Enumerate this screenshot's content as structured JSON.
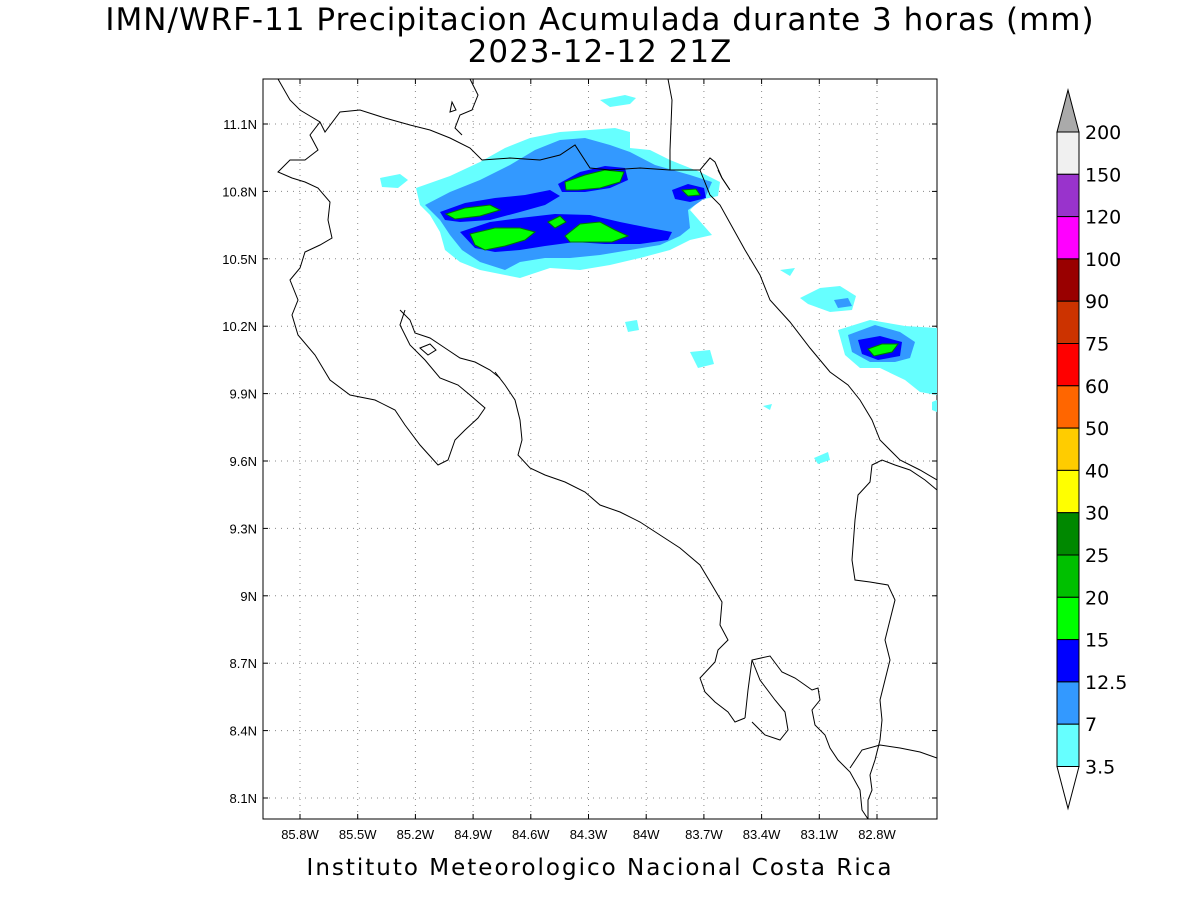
{
  "title": "IMN/WRF-11 Precipitacion Acumulada durante 3 horas (mm)",
  "subtitle": "2023-12-12 21Z",
  "footer": "Instituto Meteorologico Nacional Costa Rica",
  "map": {
    "lat_ticks": [
      "11.1N",
      "10.8N",
      "10.5N",
      "10.2N",
      "9.9N",
      "9.6N",
      "9.3N",
      "9N",
      "8.7N",
      "8.4N",
      "8.1N"
    ],
    "lon_ticks": [
      "85.8W",
      "85.5W",
      "85.2W",
      "84.9W",
      "84.6W",
      "84.3W",
      "84W",
      "83.7W",
      "83.4W",
      "83.1W",
      "82.8W"
    ],
    "grid": "dotted"
  },
  "colorbar": {
    "levels": [
      "200",
      "150",
      "120",
      "100",
      "90",
      "75",
      "60",
      "50",
      "40",
      "30",
      "25",
      "20",
      "15",
      "12.5",
      "7",
      "3.5"
    ],
    "colors": [
      "#f0f0f0",
      "#9933cc",
      "#ff00ff",
      "#990000",
      "#cc3300",
      "#ff0000",
      "#ff6600",
      "#ffcc00",
      "#ffff00",
      "#008800",
      "#00c000",
      "#00ff00",
      "#0000ff",
      "#3399ff",
      "#66ffff"
    ],
    "over_color": "#aaaaaa",
    "under_color": "#ffffff"
  },
  "precip_colors": {
    "light": "#66ffff",
    "mid": "#3399ff",
    "heavy": "#0000ff",
    "peak": "#00ff00",
    "peak2": "#00c000"
  }
}
